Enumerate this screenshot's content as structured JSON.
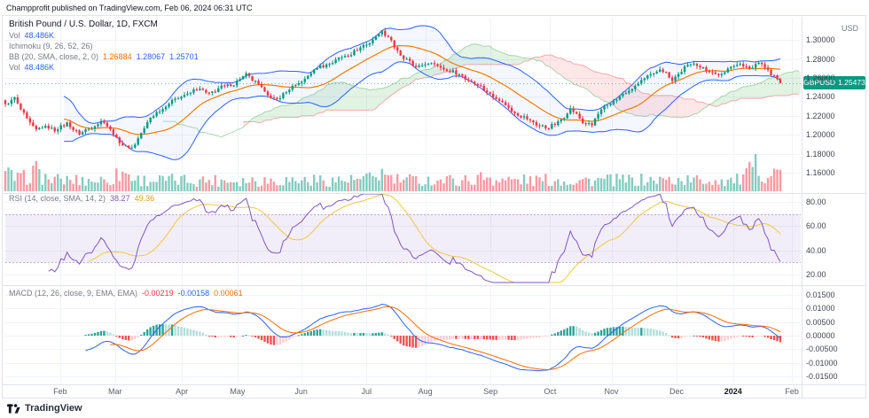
{
  "header": {
    "publish_info": "Champprofit published on TradingView.com, Feb 06, 2024 06:31 UTC"
  },
  "footer": {
    "brand": "TradingView"
  },
  "legend": {
    "title": "British Pound / U.S. Dollar, 1D, FXCM",
    "vol_label": "Vol",
    "vol_value": "48.486K",
    "vol_value_color": "#2962ff",
    "ichimoku_label": "Ichimoku (9, 26, 52, 26)",
    "bb_label": "BB (20, SMA, close, 2, 0)",
    "bb_values": [
      "1.26884",
      "1.28067",
      "1.25701"
    ],
    "bb_value_colors": [
      "#ff6d00",
      "#2962ff",
      "#2962ff"
    ],
    "vol2_label": "Vol",
    "vol2_value": "48.486K"
  },
  "rsi_legend": {
    "label": "RSI (14, close, SMA, 14, 2)",
    "values": [
      "38.27",
      "49.36"
    ],
    "value_colors": [
      "#7e57c2",
      "#d4a017"
    ]
  },
  "macd_legend": {
    "label": "MACD (12, 26, close, 9, EMA, EMA)",
    "values": [
      "-0.00219",
      "-0.00158",
      "0.00061"
    ],
    "value_colors": [
      "#f23645",
      "#2962ff",
      "#ff6d00"
    ]
  },
  "price_badge": {
    "symbol": "GBPUSD",
    "price": "1.25473",
    "color": "#089981"
  },
  "axes": {
    "currency": "USD",
    "price_ticks": [
      "1.30000",
      "1.28000",
      "1.26000",
      "1.24000",
      "1.22000",
      "1.20000",
      "1.18000",
      "1.16000"
    ],
    "price_tick_values": [
      1.3,
      1.28,
      1.26,
      1.24,
      1.22,
      1.2,
      1.18,
      1.16
    ],
    "rsi_ticks": [
      "80.00",
      "60.00",
      "40.00",
      "20.00"
    ],
    "rsi_tick_values": [
      80,
      60,
      40,
      20
    ],
    "macd_ticks": [
      "0.01500",
      "0.01000",
      "0.00500",
      "0.00000",
      "-0.00500",
      "-0.01000",
      "-0.01500"
    ],
    "macd_tick_values": [
      0.015,
      0.01,
      0.005,
      0,
      -0.005,
      -0.01,
      -0.015
    ],
    "months": [
      {
        "label": "Feb",
        "x": 0.069
      },
      {
        "label": "Mar",
        "x": 0.138
      },
      {
        "label": "Apr",
        "x": 0.222
      },
      {
        "label": "May",
        "x": 0.292
      },
      {
        "label": "Jun",
        "x": 0.372
      },
      {
        "label": "Jul",
        "x": 0.454
      },
      {
        "label": "Aug",
        "x": 0.528
      },
      {
        "label": "Sep",
        "x": 0.61
      },
      {
        "label": "Oct",
        "x": 0.685
      },
      {
        "label": "Nov",
        "x": 0.762
      },
      {
        "label": "Dec",
        "x": 0.844
      },
      {
        "label": "2024",
        "x": 0.915
      },
      {
        "label": "Feb",
        "x": 0.989
      }
    ]
  },
  "chart_data": {
    "type": "candlestick+indicators",
    "symbol": "GBPUSD",
    "timeframe": "1D",
    "exchange": "FXCM",
    "title": "British Pound / U.S. Dollar, 1D, FXCM",
    "candle_count": 252,
    "last_price": 1.25473,
    "price_range": [
      1.146,
      1.318
    ],
    "rsi_range": [
      15,
      85
    ],
    "rsi_band": [
      30,
      70
    ],
    "macd_range": [
      -0.0165,
      0.0165
    ],
    "rsi_last": 38.27,
    "rsi_ma_last": 49.36,
    "macd_last": -0.00219,
    "macd_signal_last": -0.00158,
    "macd_hist_last": 0.00061,
    "price_path": [
      [
        0.0,
        1.231
      ],
      [
        0.012,
        1.238
      ],
      [
        0.038,
        1.204
      ],
      [
        0.052,
        1.21
      ],
      [
        0.065,
        1.204
      ],
      [
        0.08,
        1.213
      ],
      [
        0.095,
        1.2
      ],
      [
        0.11,
        1.208
      ],
      [
        0.125,
        1.2145
      ],
      [
        0.138,
        1.203
      ],
      [
        0.152,
        1.188
      ],
      [
        0.163,
        1.185
      ],
      [
        0.175,
        1.202
      ],
      [
        0.188,
        1.218
      ],
      [
        0.202,
        1.228
      ],
      [
        0.216,
        1.236
      ],
      [
        0.23,
        1.242
      ],
      [
        0.248,
        1.248
      ],
      [
        0.263,
        1.244
      ],
      [
        0.28,
        1.25
      ],
      [
        0.295,
        1.2545
      ],
      [
        0.31,
        1.263
      ],
      [
        0.325,
        1.255
      ],
      [
        0.345,
        1.236
      ],
      [
        0.36,
        1.244
      ],
      [
        0.375,
        1.252
      ],
      [
        0.39,
        1.262
      ],
      [
        0.405,
        1.272
      ],
      [
        0.42,
        1.276
      ],
      [
        0.435,
        1.282
      ],
      [
        0.45,
        1.288
      ],
      [
        0.468,
        1.296
      ],
      [
        0.484,
        1.309
      ],
      [
        0.497,
        1.301
      ],
      [
        0.51,
        1.283
      ],
      [
        0.528,
        1.272
      ],
      [
        0.55,
        1.276
      ],
      [
        0.57,
        1.268
      ],
      [
        0.59,
        1.262
      ],
      [
        0.61,
        1.252
      ],
      [
        0.63,
        1.241
      ],
      [
        0.65,
        1.228
      ],
      [
        0.668,
        1.218
      ],
      [
        0.685,
        1.212
      ],
      [
        0.7,
        1.206
      ],
      [
        0.715,
        1.215
      ],
      [
        0.73,
        1.227
      ],
      [
        0.745,
        1.214
      ],
      [
        0.757,
        1.21
      ],
      [
        0.77,
        1.228
      ],
      [
        0.79,
        1.238
      ],
      [
        0.81,
        1.25
      ],
      [
        0.83,
        1.262
      ],
      [
        0.845,
        1.27
      ],
      [
        0.86,
        1.258
      ],
      [
        0.875,
        1.27
      ],
      [
        0.89,
        1.276
      ],
      [
        0.905,
        1.268
      ],
      [
        0.92,
        1.262
      ],
      [
        0.935,
        1.272
      ],
      [
        0.95,
        1.274
      ],
      [
        0.962,
        1.27
      ],
      [
        0.972,
        1.276
      ],
      [
        0.985,
        1.268
      ],
      [
        1.0,
        1.25473
      ]
    ],
    "volume_spikes": [
      [
        0.0,
        1.5
      ],
      [
        0.038,
        1.8
      ],
      [
        0.152,
        1.7
      ],
      [
        0.484,
        1.6
      ],
      [
        0.62,
        1.3
      ],
      [
        0.97,
        2.4
      ],
      [
        1.0,
        1.8
      ]
    ],
    "colors": {
      "up": "#089981",
      "down": "#f23645",
      "volUp": "rgba(8,153,129,0.5)",
      "volDown": "rgba(242,54,69,0.5)",
      "bbLine": "#2962ff",
      "bbBasis": "#f57c00",
      "bbFill": "rgba(41,98,255,0.05)",
      "cloudUp": "rgba(76,175,80,0.16)",
      "cloudDown": "rgba(255,82,82,0.14)",
      "cloudEdgeUp": "rgba(76,175,80,0.45)",
      "cloudEdgeDown": "rgba(239,83,80,0.45)",
      "rsi": "#7e57c2",
      "rsiMa": "#f5c542",
      "rsiBand": "rgba(126,87,194,0.10)",
      "rsiBandEdge": "rgba(126,87,194,0.45)",
      "macd": "#2962ff",
      "signal": "#ff6d00",
      "histUp": "#26a69a",
      "histUpFade": "#b2dfdb",
      "histDown": "#ef5350",
      "histDownFade": "#ffcdd2",
      "grid": "#f0f3fa",
      "axisBorder": "#e0e3eb",
      "lastPriceLine": "rgba(8,153,129,0.6)"
    }
  }
}
